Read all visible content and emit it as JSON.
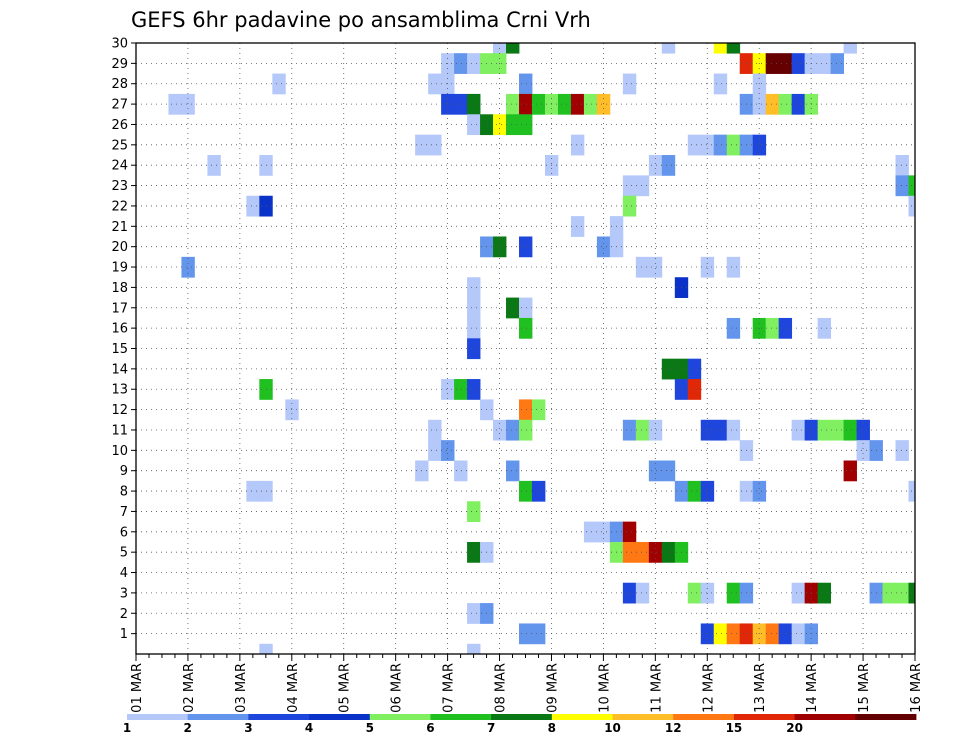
{
  "chart_data": {
    "type": "heatmap",
    "title": "GEFS 6hr padavine po ansamblima Crni Vrh",
    "xlabel": "",
    "ylabel": "",
    "x_tick_labels": [
      "01 MAR",
      "02 MAR",
      "03 MAR",
      "04 MAR",
      "05 MAR",
      "06 MAR",
      "07 MAR",
      "08 MAR",
      "09 MAR",
      "10 MAR",
      "11 MAR",
      "12 MAR",
      "13 MAR",
      "14 MAR",
      "15 MAR",
      "16 MAR"
    ],
    "y_tick_labels": [
      "1",
      "2",
      "3",
      "4",
      "5",
      "6",
      "7",
      "8",
      "9",
      "10",
      "11",
      "12",
      "13",
      "14",
      "15",
      "16",
      "17",
      "18",
      "19",
      "20",
      "21",
      "22",
      "23",
      "24",
      "25",
      "26",
      "27",
      "28",
      "29",
      "30"
    ],
    "x_unit": "6-hour step from 01 MAR 00Z",
    "xlim": [
      0,
      60
    ],
    "ylim": [
      0,
      30
    ],
    "grid": true,
    "colorbar": {
      "levels": [
        "1",
        "2",
        "3",
        "4",
        "5",
        "6",
        "7",
        "8",
        "10",
        "12",
        "15",
        "20"
      ],
      "colors": [
        "#b4c8fa",
        "#6495ed",
        "#1e46dc",
        "#0a32c8",
        "#80f060",
        "#20c020",
        "#0a7814",
        "#ffff00",
        "#ffbe28",
        "#ff7814",
        "#e02808",
        "#a00000",
        "#640000"
      ]
    },
    "cells": [
      [
        30,
        28,
        0
      ],
      [
        30,
        29,
        6
      ],
      [
        30,
        41,
        0
      ],
      [
        30,
        45,
        7
      ],
      [
        30,
        46,
        6
      ],
      [
        30,
        55,
        0
      ],
      [
        29,
        24,
        0
      ],
      [
        29,
        25,
        1
      ],
      [
        29,
        26,
        0
      ],
      [
        29,
        27,
        4
      ],
      [
        29,
        28,
        4
      ],
      [
        29,
        47,
        10
      ],
      [
        29,
        48,
        7
      ],
      [
        29,
        49,
        12
      ],
      [
        29,
        50,
        12
      ],
      [
        29,
        51,
        2
      ],
      [
        29,
        52,
        0
      ],
      [
        29,
        53,
        0
      ],
      [
        29,
        54,
        1
      ],
      [
        28,
        11,
        0
      ],
      [
        28,
        23,
        0
      ],
      [
        28,
        24,
        0
      ],
      [
        28,
        30,
        1
      ],
      [
        28,
        38,
        0
      ],
      [
        28,
        45,
        0
      ],
      [
        28,
        48,
        0
      ],
      [
        27,
        3,
        0
      ],
      [
        27,
        4,
        0
      ],
      [
        27,
        24,
        2
      ],
      [
        27,
        25,
        2
      ],
      [
        27,
        26,
        6
      ],
      [
        27,
        29,
        4
      ],
      [
        27,
        30,
        11
      ],
      [
        27,
        31,
        5
      ],
      [
        27,
        32,
        4
      ],
      [
        27,
        33,
        5
      ],
      [
        27,
        34,
        11
      ],
      [
        27,
        35,
        4
      ],
      [
        27,
        36,
        8
      ],
      [
        27,
        47,
        1
      ],
      [
        27,
        48,
        0
      ],
      [
        27,
        49,
        8
      ],
      [
        27,
        50,
        4
      ],
      [
        27,
        51,
        2
      ],
      [
        27,
        52,
        4
      ],
      [
        26,
        26,
        0
      ],
      [
        26,
        27,
        6
      ],
      [
        26,
        28,
        7
      ],
      [
        26,
        29,
        5
      ],
      [
        26,
        30,
        5
      ],
      [
        25,
        22,
        0
      ],
      [
        25,
        23,
        0
      ],
      [
        25,
        34,
        0
      ],
      [
        25,
        43,
        0
      ],
      [
        25,
        44,
        0
      ],
      [
        25,
        45,
        1
      ],
      [
        25,
        46,
        4
      ],
      [
        25,
        47,
        1
      ],
      [
        25,
        48,
        2
      ],
      [
        24,
        6,
        0
      ],
      [
        24,
        10,
        0
      ],
      [
        24,
        32,
        0
      ],
      [
        24,
        40,
        0
      ],
      [
        24,
        41,
        1
      ],
      [
        24,
        59,
        0
      ],
      [
        23,
        38,
        0
      ],
      [
        23,
        39,
        0
      ],
      [
        23,
        59,
        1
      ],
      [
        23,
        60,
        5
      ],
      [
        22,
        9,
        0
      ],
      [
        22,
        10,
        3
      ],
      [
        22,
        38,
        4
      ],
      [
        22,
        60,
        0
      ],
      [
        21,
        34,
        0
      ],
      [
        21,
        37,
        0
      ],
      [
        20,
        27,
        1
      ],
      [
        20,
        28,
        6
      ],
      [
        20,
        30,
        2
      ],
      [
        20,
        36,
        1
      ],
      [
        20,
        37,
        0
      ],
      [
        19,
        4,
        1
      ],
      [
        19,
        39,
        0
      ],
      [
        19,
        40,
        0
      ],
      [
        19,
        44,
        0
      ],
      [
        19,
        46,
        0
      ],
      [
        18,
        26,
        0
      ],
      [
        18,
        42,
        3
      ],
      [
        17,
        26,
        0
      ],
      [
        17,
        29,
        6
      ],
      [
        17,
        30,
        0
      ],
      [
        16,
        26,
        0
      ],
      [
        16,
        30,
        5
      ],
      [
        16,
        46,
        1
      ],
      [
        16,
        48,
        5
      ],
      [
        16,
        49,
        4
      ],
      [
        16,
        50,
        2
      ],
      [
        16,
        53,
        0
      ],
      [
        15,
        26,
        2
      ],
      [
        14,
        41,
        6
      ],
      [
        14,
        42,
        6
      ],
      [
        14,
        43,
        2
      ],
      [
        13,
        10,
        5
      ],
      [
        13,
        24,
        0
      ],
      [
        13,
        25,
        5
      ],
      [
        13,
        26,
        2
      ],
      [
        13,
        42,
        2
      ],
      [
        13,
        43,
        10
      ],
      [
        12,
        12,
        0
      ],
      [
        12,
        27,
        0
      ],
      [
        12,
        30,
        9
      ],
      [
        12,
        31,
        4
      ],
      [
        11,
        23,
        0
      ],
      [
        11,
        28,
        0
      ],
      [
        11,
        29,
        1
      ],
      [
        11,
        30,
        4
      ],
      [
        11,
        38,
        1
      ],
      [
        11,
        39,
        4
      ],
      [
        11,
        40,
        0
      ],
      [
        11,
        44,
        2
      ],
      [
        11,
        45,
        2
      ],
      [
        11,
        46,
        0
      ],
      [
        11,
        51,
        0
      ],
      [
        11,
        52,
        2
      ],
      [
        11,
        53,
        4
      ],
      [
        11,
        54,
        4
      ],
      [
        11,
        55,
        5
      ],
      [
        11,
        56,
        2
      ],
      [
        10,
        23,
        0
      ],
      [
        10,
        24,
        1
      ],
      [
        10,
        47,
        0
      ],
      [
        10,
        56,
        0
      ],
      [
        10,
        57,
        1
      ],
      [
        10,
        59,
        0
      ],
      [
        9,
        22,
        0
      ],
      [
        9,
        25,
        0
      ],
      [
        9,
        29,
        1
      ],
      [
        9,
        40,
        1
      ],
      [
        9,
        41,
        1
      ],
      [
        9,
        55,
        11
      ],
      [
        8,
        9,
        0
      ],
      [
        8,
        10,
        0
      ],
      [
        8,
        30,
        5
      ],
      [
        8,
        31,
        2
      ],
      [
        8,
        42,
        1
      ],
      [
        8,
        43,
        5
      ],
      [
        8,
        44,
        2
      ],
      [
        8,
        47,
        0
      ],
      [
        8,
        48,
        1
      ],
      [
        8,
        60,
        0
      ],
      [
        7,
        26,
        4
      ],
      [
        6,
        35,
        0
      ],
      [
        6,
        36,
        0
      ],
      [
        6,
        37,
        1
      ],
      [
        6,
        38,
        11
      ],
      [
        5,
        26,
        6
      ],
      [
        5,
        27,
        0
      ],
      [
        5,
        37,
        4
      ],
      [
        5,
        38,
        9
      ],
      [
        5,
        39,
        9
      ],
      [
        5,
        40,
        11
      ],
      [
        5,
        41,
        6
      ],
      [
        5,
        42,
        5
      ],
      [
        3,
        38,
        2
      ],
      [
        3,
        39,
        0
      ],
      [
        3,
        43,
        4
      ],
      [
        3,
        44,
        0
      ],
      [
        3,
        46,
        5
      ],
      [
        3,
        47,
        1
      ],
      [
        3,
        51,
        0
      ],
      [
        3,
        52,
        11
      ],
      [
        3,
        53,
        6
      ],
      [
        3,
        57,
        1
      ],
      [
        3,
        58,
        4
      ],
      [
        3,
        59,
        4
      ],
      [
        3,
        60,
        6
      ],
      [
        2,
        26,
        0
      ],
      [
        2,
        27,
        1
      ],
      [
        1,
        30,
        1
      ],
      [
        1,
        31,
        1
      ],
      [
        1,
        44,
        2
      ],
      [
        1,
        45,
        7
      ],
      [
        1,
        46,
        9
      ],
      [
        1,
        47,
        10
      ],
      [
        1,
        48,
        8
      ],
      [
        1,
        49,
        9
      ],
      [
        1,
        50,
        2
      ],
      [
        1,
        51,
        0
      ],
      [
        1,
        52,
        1
      ],
      [
        0,
        10,
        0
      ],
      [
        0,
        26,
        0
      ]
    ]
  }
}
